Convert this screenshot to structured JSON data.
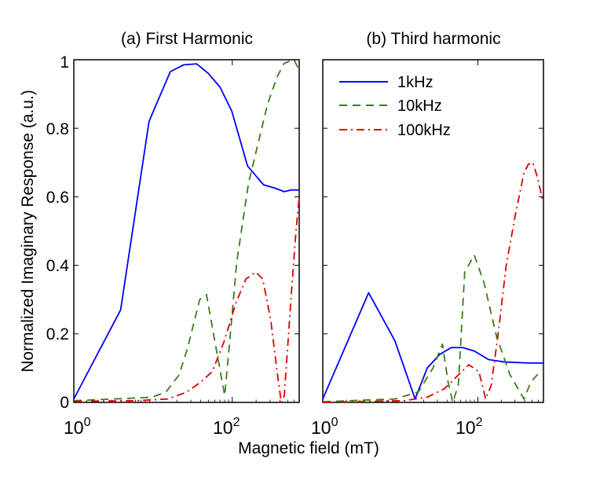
{
  "figure": {
    "xlabel": "Magnetic field (mT)",
    "ylabel": "Normalized Imaginary Response (a.u.)"
  },
  "chart_data": [
    {
      "type": "line",
      "title": "(a) First Harmonic",
      "xscale": "log",
      "xlim": [
        1,
        700
      ],
      "ylim": [
        0,
        1
      ],
      "xticks": [
        1,
        100
      ],
      "xtick_labels": [
        {
          "base": "10",
          "exp": "0"
        },
        {
          "base": "10",
          "exp": "2"
        }
      ],
      "yticks": [
        0,
        0.2,
        0.4,
        0.6,
        0.8,
        1
      ],
      "ytick_labels": [
        "0",
        "0.2",
        "0.4",
        "0.6",
        "0.8",
        "1"
      ],
      "series": [
        {
          "name": "1kHz",
          "color": "#0000ff",
          "dash": "solid",
          "x": [
            1,
            3.9,
            8.9,
            16.5,
            24.2,
            35.5,
            49.9,
            70.1,
            98.6,
            155.8,
            248.1,
            349,
            453.5,
            557.9,
            700
          ],
          "y": [
            0.01,
            0.27,
            0.82,
            0.965,
            0.985,
            0.988,
            0.96,
            0.92,
            0.85,
            0.69,
            0.635,
            0.625,
            0.615,
            0.62,
            0.62
          ]
        },
        {
          "name": "10kHz",
          "color": "#3a7d1a",
          "dash": "dashed",
          "x": [
            1,
            3.2,
            9.6,
            14.5,
            21.3,
            27.4,
            38.8,
            47.3,
            59,
            80.3,
            90.5,
            114,
            160.4,
            278.7,
            368,
            453.5,
            600,
            700
          ],
          "y": [
            0.005,
            0.01,
            0.015,
            0.03,
            0.08,
            0.16,
            0.3,
            0.315,
            0.19,
            0.02,
            0.15,
            0.41,
            0.64,
            0.87,
            0.95,
            0.99,
            1.0,
            0.97
          ]
        },
        {
          "name": "100kHz",
          "color": "#dd0000",
          "dash": "dashdot",
          "x": [
            1,
            6.2,
            15.4,
            26.6,
            40.3,
            56,
            79.5,
            111.2,
            148.5,
            198.6,
            242.6,
            306.1,
            368,
            415.8,
            453.5,
            503.3,
            561.6,
            637.7,
            700
          ],
          "y": [
            0.003,
            0.005,
            0.01,
            0.03,
            0.06,
            0.09,
            0.18,
            0.29,
            0.36,
            0.38,
            0.36,
            0.24,
            0.09,
            0.0,
            0.02,
            0.17,
            0.33,
            0.5,
            0.6
          ]
        }
      ]
    },
    {
      "type": "line",
      "title": "(b) Third harmonic",
      "xscale": "log",
      "xlim": [
        1,
        700
      ],
      "ylim": [
        0,
        1
      ],
      "xticks": [
        1,
        100
      ],
      "xtick_labels": [
        {
          "base": "10",
          "exp": "0"
        },
        {
          "base": "10",
          "exp": "2"
        }
      ],
      "yticks": [
        0,
        0.2,
        0.4,
        0.6,
        0.8,
        1
      ],
      "ytick_labels": [],
      "legend": {
        "position": "top-left",
        "entries": [
          "1kHz",
          "10kHz",
          "100kHz"
        ]
      },
      "series": [
        {
          "name": "1kHz",
          "color": "#0000ff",
          "dash": "solid",
          "x": [
            1,
            3.9,
            8.5,
            15.5,
            22.2,
            32.2,
            45.3,
            63.8,
            89.8,
            137.2,
            219.7,
            447.4,
            700
          ],
          "y": [
            0.01,
            0.32,
            0.18,
            0.01,
            0.1,
            0.14,
            0.16,
            0.16,
            0.15,
            0.125,
            0.118,
            0.115,
            0.115
          ]
        },
        {
          "name": "10kHz",
          "color": "#3a7d1a",
          "dash": "dashed",
          "x": [
            1,
            8.5,
            17,
            26.3,
            34.9,
            41.2,
            47.4,
            55.9,
            67.6,
            89.8,
            119.6,
            174.9,
            260.3,
            392.6,
            482.5,
            580.4,
            700
          ],
          "y": [
            0.002,
            0.01,
            0.03,
            0.1,
            0.17,
            0.06,
            0.0,
            0.05,
            0.38,
            0.43,
            0.35,
            0.19,
            0.08,
            0.01,
            0.06,
            0.08,
            0.09
          ]
        },
        {
          "name": "100kHz",
          "color": "#dd0000",
          "dash": "dashdot",
          "x": [
            1,
            11.2,
            22.2,
            37.1,
            55.9,
            76.5,
            102.9,
            126,
            148.5,
            182.4,
            231.8,
            305.6,
            392.6,
            447.4,
            509.8,
            580.4,
            700
          ],
          "y": [
            0.0,
            0.005,
            0.015,
            0.04,
            0.08,
            0.11,
            0.09,
            0.01,
            0.05,
            0.2,
            0.4,
            0.55,
            0.67,
            0.695,
            0.7,
            0.66,
            0.58
          ]
        }
      ]
    }
  ]
}
